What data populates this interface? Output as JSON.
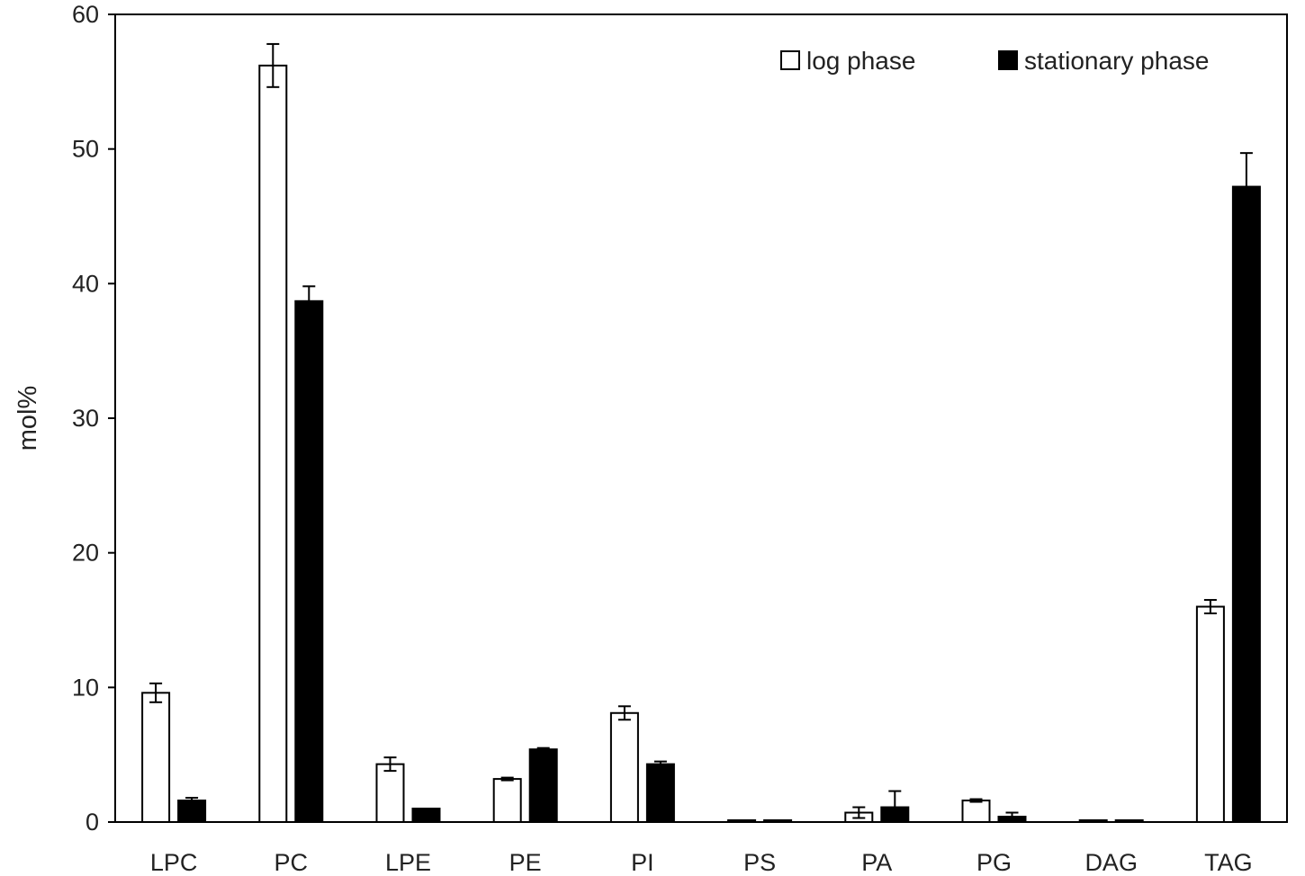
{
  "chart_data": {
    "type": "bar",
    "title": "",
    "xlabel": "",
    "ylabel": "mol%",
    "ylim": [
      0,
      60
    ],
    "yticks": [
      "0",
      "10",
      "20",
      "30",
      "40",
      "50",
      "60"
    ],
    "ytick_values": [
      0,
      10,
      20,
      30,
      40,
      50,
      60
    ],
    "grid": false,
    "legend_position": "top-right",
    "categories": [
      "LPC",
      "PC",
      "LPE",
      "PE",
      "PI",
      "PS",
      "PA",
      "PG",
      "DAG",
      "TAG"
    ],
    "series": [
      {
        "name": "log phase",
        "fill": "#ffffff",
        "stroke": "#000000",
        "values": [
          9.6,
          56.2,
          4.3,
          3.2,
          8.1,
          0.05,
          0.7,
          1.6,
          0.05,
          16.0
        ],
        "errors": [
          0.7,
          1.6,
          0.5,
          0.1,
          0.5,
          0.0,
          0.4,
          0.1,
          0.0,
          0.5
        ]
      },
      {
        "name": "stationary phase",
        "fill": "#000000",
        "stroke": "#000000",
        "values": [
          1.6,
          38.7,
          1.0,
          5.4,
          4.3,
          0.05,
          1.1,
          0.4,
          0.05,
          47.2
        ],
        "errors": [
          0.2,
          1.1,
          0.0,
          0.1,
          0.2,
          0.0,
          1.2,
          0.3,
          0.0,
          2.5
        ]
      }
    ]
  }
}
